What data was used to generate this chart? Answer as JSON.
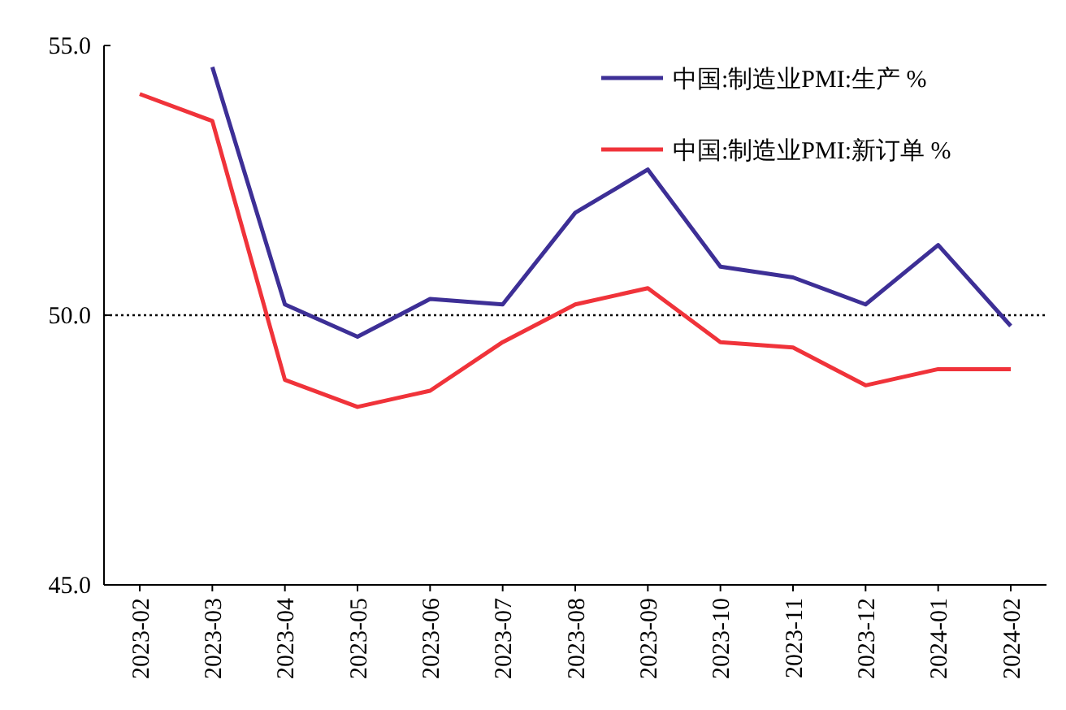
{
  "chart_data": {
    "type": "line",
    "categories": [
      "2023-02",
      "2023-03",
      "2023-04",
      "2023-05",
      "2023-06",
      "2023-07",
      "2023-08",
      "2023-09",
      "2023-10",
      "2023-11",
      "2023-12",
      "2024-01",
      "2024-02"
    ],
    "series": [
      {
        "name": "中国:制造业PMI:生产 %",
        "color": "#3d2f96",
        "values": [
          null,
          54.6,
          50.2,
          49.6,
          50.3,
          50.2,
          51.9,
          52.7,
          50.9,
          50.7,
          50.2,
          51.3,
          49.8
        ]
      },
      {
        "name": "中国:制造业PMI:新订单 %",
        "color": "#f0333a",
        "values": [
          54.1,
          53.6,
          48.8,
          48.3,
          48.6,
          49.5,
          50.2,
          50.5,
          49.5,
          49.4,
          48.7,
          49.0,
          49.0
        ]
      }
    ],
    "ylim": [
      45,
      55
    ],
    "yticks": [
      {
        "value": 45,
        "label": "45.0"
      },
      {
        "value": 50,
        "label": "50.0"
      },
      {
        "value": 55,
        "label": "55.0"
      }
    ],
    "ref_lines": [
      {
        "axis": "y",
        "value": 50,
        "color": "#000000",
        "line_style": "dotted"
      }
    ],
    "legend": "top right",
    "marker": "none",
    "line_style": "solid",
    "grid": false
  }
}
